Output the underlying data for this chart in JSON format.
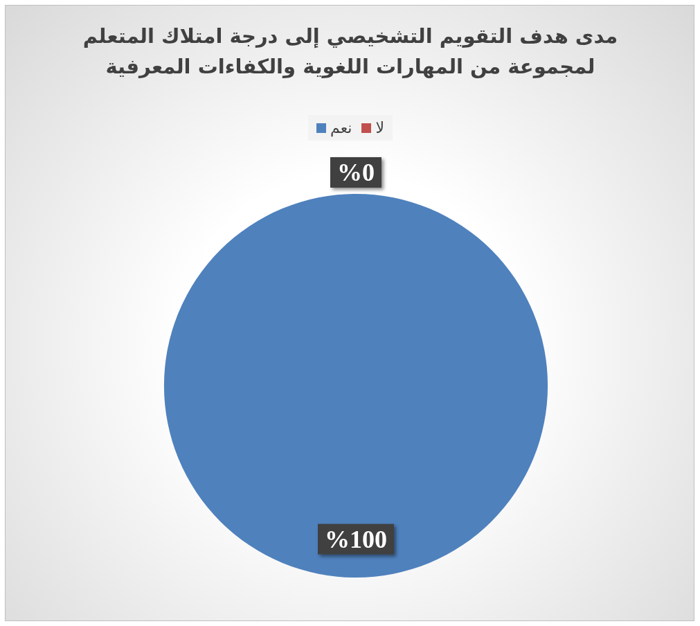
{
  "chart_data": {
    "type": "pie",
    "title": "مدى هدف التقويم التشخيصي إلى درجة امتلاك المتعلم لمجموعة من المهارات اللغوية والكفاءات المعرفية",
    "categories": [
      "لا",
      "نعم"
    ],
    "values": [
      0,
      100
    ],
    "colors": [
      "#c0504d",
      "#4f81bd"
    ],
    "value_labels": [
      "%0",
      "%100"
    ],
    "legend": "top"
  }
}
